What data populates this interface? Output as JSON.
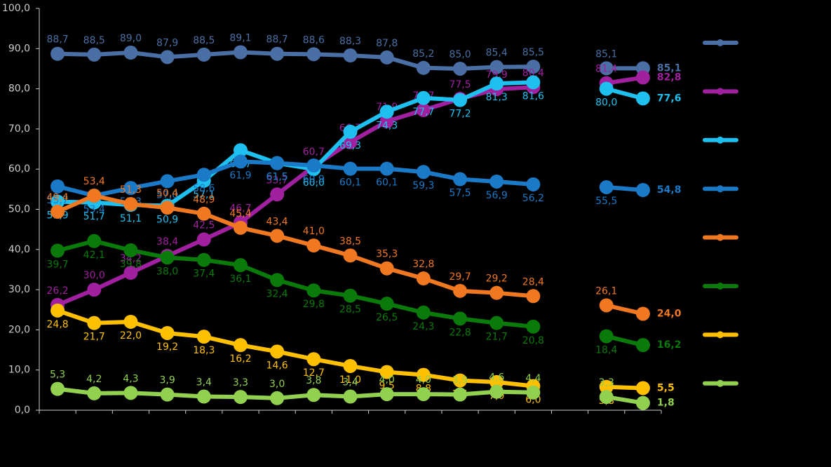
{
  "chart_data": {
    "type": "line",
    "categories": [
      null,
      null,
      null,
      null,
      null,
      null,
      null,
      null,
      null,
      null,
      null,
      null,
      null,
      null,
      null,
      null,
      null
    ],
    "ylim": [
      0,
      100
    ],
    "yticks": [
      {
        "value": 0,
        "label": "0,0"
      },
      {
        "value": 10,
        "label": "10,0"
      },
      {
        "value": 20,
        "label": "20,0"
      },
      {
        "value": 30,
        "label": "30,0"
      },
      {
        "value": 40,
        "label": "40,0"
      },
      {
        "value": 50,
        "label": "50,0"
      },
      {
        "value": 60,
        "label": "60,0"
      },
      {
        "value": 70,
        "label": "70,0"
      },
      {
        "value": 80,
        "label": "80,0"
      },
      {
        "value": 90,
        "label": "90,0"
      },
      {
        "value": 100,
        "label": "100,0"
      }
    ],
    "series": [
      {
        "color": "#4a6fa5",
        "values": [
          88.7,
          88.5,
          89.0,
          87.9,
          88.5,
          89.1,
          88.7,
          88.6,
          88.3,
          87.8,
          85.2,
          85.0,
          85.4,
          85.5,
          null,
          85.1,
          85.1
        ],
        "value_labels": [
          "88,7",
          "88,5",
          "89,0",
          "87,9",
          "88,5",
          "89,1",
          "88,7",
          "88,6",
          "88,3",
          "87,8",
          "85,2",
          "85,0",
          "85,4",
          "85,5",
          null,
          "85,1",
          "85,1"
        ]
      },
      {
        "color": "#a020a0",
        "values": [
          26.2,
          30.0,
          34.2,
          38.4,
          42.5,
          46.7,
          53.7,
          60.7,
          66.7,
          71.9,
          74.7,
          77.5,
          79.9,
          80.4,
          null,
          81.4,
          82.8
        ],
        "value_labels": [
          "26,2",
          "30,0",
          "34,2",
          "38,4",
          "42,5",
          "46,7",
          "53,7",
          "60,7",
          "66,7",
          "71,9",
          "74,7",
          "77,5",
          "79,9",
          "80,4",
          null,
          "81,4",
          "82,8"
        ]
      },
      {
        "color": "#1ec0f0",
        "values": [
          51.9,
          51.7,
          51.1,
          50.9,
          57.1,
          64.7,
          61.5,
          60.0,
          69.3,
          74.3,
          77.7,
          77.2,
          81.3,
          81.6,
          null,
          80.0,
          77.6
        ],
        "value_labels": [
          "51,9",
          "51,7",
          "51,1",
          "50,9",
          "57,1",
          "64,7",
          "61,5",
          "60,0",
          "69,3",
          "74,3",
          "77,7",
          "77,2",
          "81,3",
          "81,6",
          null,
          "80,0",
          "77,6"
        ]
      },
      {
        "color": "#1a7ac8",
        "values": [
          55.7,
          53.4,
          55.3,
          57.0,
          58.6,
          61.9,
          61.5,
          60.9,
          60.1,
          60.1,
          59.3,
          57.5,
          56.9,
          56.2,
          null,
          55.5,
          54.8
        ],
        "value_labels": [
          "55,7",
          "53,4",
          "55,3",
          "57,0",
          "58,6",
          "61,9",
          "61,5",
          "60,9",
          "60,1",
          "60,1",
          "59,3",
          "57,5",
          "56,9",
          "56,2",
          null,
          "55,5",
          "54,8"
        ]
      },
      {
        "color": "#f07820",
        "values": [
          49.4,
          53.4,
          51.3,
          50.4,
          48.9,
          45.4,
          43.4,
          41.0,
          38.5,
          35.3,
          32.8,
          29.7,
          29.2,
          28.4,
          null,
          26.1,
          24.0
        ],
        "value_labels": [
          "49,4",
          "53,4",
          "51,3",
          "50,4",
          "48,9",
          "45,4",
          "43,4",
          "41,0",
          "38,5",
          "35,3",
          "32,8",
          "29,7",
          "29,2",
          "28,4",
          null,
          "26,1",
          "24,0"
        ]
      },
      {
        "color": "#0a7a0a",
        "values": [
          39.7,
          42.1,
          39.8,
          38.0,
          37.4,
          36.1,
          32.4,
          29.8,
          28.5,
          26.5,
          24.3,
          22.8,
          21.7,
          20.8,
          null,
          18.4,
          16.2
        ],
        "value_labels": [
          "39,7",
          "42,1",
          "39,8",
          "38,0",
          "37,4",
          "36,1",
          "32,4",
          "29,8",
          "28,5",
          "26,5",
          "24,3",
          "22,8",
          "21,7",
          "20,8",
          null,
          "18,4",
          "16,2"
        ]
      },
      {
        "color": "#ffc000",
        "values": [
          24.8,
          21.7,
          22.0,
          19.2,
          18.3,
          16.2,
          14.6,
          12.7,
          11.0,
          9.5,
          8.8,
          7.4,
          7.0,
          6.0,
          null,
          5.8,
          5.5
        ],
        "value_labels": [
          "24,8",
          "21,7",
          "22,0",
          "19,2",
          "18,3",
          "16,2",
          "14,6",
          "12,7",
          "11,0",
          "9,5",
          "8,8",
          "7,4",
          "7,0",
          "6,0",
          null,
          "5,8",
          "5,5"
        ]
      },
      {
        "color": "#92d050",
        "values": [
          5.3,
          4.2,
          4.3,
          3.9,
          3.4,
          3.3,
          3.0,
          3.8,
          3.4,
          4.0,
          4.0,
          3.9,
          4.6,
          4.4,
          null,
          3.3,
          1.8
        ],
        "value_labels": [
          "5,3",
          "4,2",
          "4,3",
          "3,9",
          "3,4",
          "3,3",
          "3,0",
          "3,8",
          "3,4",
          "4,0",
          "4,0",
          "3,9",
          "4,6",
          "4,4",
          null,
          "3,3",
          "1,8"
        ]
      }
    ]
  }
}
